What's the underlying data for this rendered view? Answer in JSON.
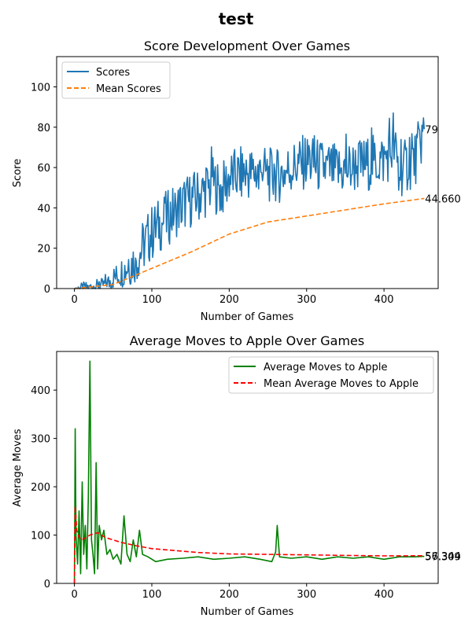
{
  "figure": {
    "suptitle": "test"
  },
  "chart_data": [
    {
      "type": "line",
      "title": "Score Development Over Games",
      "xlabel": "Number of Games",
      "ylabel": "Score",
      "xlim": [
        -23,
        470
      ],
      "ylim": [
        0,
        115
      ],
      "xticks": [
        0,
        100,
        200,
        300,
        400
      ],
      "yticks": [
        0,
        20,
        40,
        60,
        80,
        100
      ],
      "grid": false,
      "legend": "upper left",
      "colors": {
        "Scores": "#1f77b4",
        "Mean Scores": "#ff7f0e"
      },
      "series": [
        {
          "name": "Scores",
          "style": "solid",
          "noise": 14,
          "x": [
            0,
            20,
            40,
            60,
            80,
            100,
            120,
            140,
            160,
            180,
            190,
            200,
            220,
            240,
            260,
            280,
            300,
            320,
            340,
            360,
            380,
            400,
            413,
            420,
            440,
            452
          ],
          "y": [
            0,
            1,
            2,
            8,
            15,
            28,
            35,
            42,
            46,
            52,
            48,
            55,
            57,
            58,
            55,
            60,
            63,
            60,
            58,
            60,
            62,
            64,
            70,
            58,
            64,
            79
          ]
        },
        {
          "name": "Mean Scores",
          "style": "dashed",
          "x": [
            0,
            50,
            100,
            150,
            200,
            250,
            300,
            350,
            400,
            452
          ],
          "y": [
            0,
            2,
            10,
            18,
            27,
            33,
            36,
            39,
            42,
            44.66
          ]
        }
      ],
      "end_labels": [
        "79",
        "44.660"
      ]
    },
    {
      "type": "line",
      "title": "Average Moves to Apple Over Games",
      "xlabel": "Number of Games",
      "ylabel": "Average Moves",
      "xlim": [
        -23,
        470
      ],
      "ylim": [
        0,
        480
      ],
      "xticks": [
        0,
        100,
        200,
        300,
        400
      ],
      "yticks": [
        0,
        100,
        200,
        300,
        400
      ],
      "grid": false,
      "legend": "upper right",
      "colors": {
        "Average Moves to Apple": "#008000",
        "Mean Average Moves to Apple": "#ff0000"
      },
      "series": [
        {
          "name": "Average Moves to Apple",
          "style": "solid",
          "x": [
            0,
            1,
            2,
            4,
            6,
            8,
            10,
            12,
            14,
            16,
            18,
            20,
            22,
            24,
            26,
            28,
            30,
            32,
            35,
            38,
            42,
            46,
            50,
            55,
            60,
            64,
            68,
            72,
            76,
            80,
            84,
            88,
            95,
            105,
            120,
            140,
            160,
            180,
            200,
            220,
            240,
            255,
            260,
            262,
            265,
            280,
            300,
            320,
            340,
            360,
            380,
            400,
            420,
            440,
            452
          ],
          "y": [
            0,
            320,
            100,
            40,
            150,
            20,
            210,
            60,
            120,
            30,
            180,
            460,
            90,
            60,
            20,
            250,
            30,
            120,
            90,
            110,
            60,
            70,
            50,
            60,
            40,
            140,
            60,
            45,
            90,
            55,
            110,
            60,
            55,
            45,
            50,
            52,
            55,
            50,
            52,
            55,
            50,
            45,
            65,
            120,
            55,
            52,
            55,
            50,
            55,
            52,
            55,
            50,
            55,
            55,
            56
          ]
        },
        {
          "name": "Mean Average Moves to Apple",
          "style": "dashed",
          "x": [
            0,
            1,
            3,
            6,
            10,
            15,
            20,
            30,
            40,
            50,
            60,
            80,
            100,
            130,
            160,
            200,
            250,
            300,
            350,
            400,
            452
          ],
          "y": [
            0,
            160,
            110,
            95,
            90,
            95,
            100,
            105,
            95,
            90,
            85,
            78,
            72,
            68,
            64,
            61,
            60,
            59,
            58,
            57,
            57.3
          ]
        }
      ],
      "end_labels": [
        "57.309",
        "56.344"
      ]
    }
  ]
}
